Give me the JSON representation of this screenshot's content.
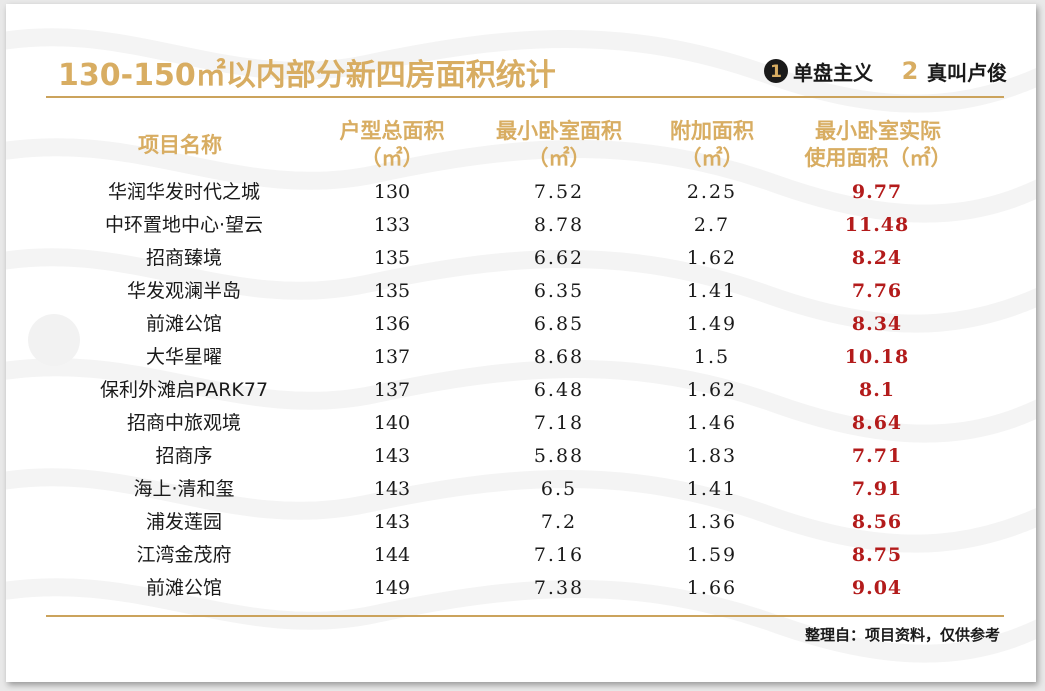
{
  "title": "130-150㎡以内部分新四房面积统计",
  "brands": [
    {
      "mark": "1",
      "text": "单盘主义"
    },
    {
      "mark": "2",
      "text": "真叫卢俊"
    }
  ],
  "table": {
    "headers": [
      {
        "line1": "项目名称",
        "line2": ""
      },
      {
        "line1": "户型总面积",
        "line2": "（㎡）"
      },
      {
        "line1": "最小卧室面积",
        "line2": "（㎡）"
      },
      {
        "line1": "附加面积",
        "line2": "（㎡）"
      },
      {
        "line1": "最小卧室实际",
        "line2": "使用面积（㎡）"
      }
    ],
    "rows": [
      {
        "name": "华润华发时代之城",
        "total": "130",
        "min": "7.52",
        "add": "2.25",
        "actual": "9.77"
      },
      {
        "name": "中环置地中心·望云",
        "total": "133",
        "min": "8.78",
        "add": "2.7",
        "actual": "11.48"
      },
      {
        "name": "招商臻境",
        "total": "135",
        "min": "6.62",
        "add": "1.62",
        "actual": "8.24"
      },
      {
        "name": "华发观澜半岛",
        "total": "135",
        "min": "6.35",
        "add": "1.41",
        "actual": "7.76"
      },
      {
        "name": "前滩公馆",
        "total": "136",
        "min": "6.85",
        "add": "1.49",
        "actual": "8.34"
      },
      {
        "name": "大华星曜",
        "total": "137",
        "min": "8.68",
        "add": "1.5",
        "actual": "10.18"
      },
      {
        "name": "保利外滩启PARK77",
        "total": "137",
        "min": "6.48",
        "add": "1.62",
        "actual": "8.1"
      },
      {
        "name": "招商中旅观境",
        "total": "140",
        "min": "7.18",
        "add": "1.46",
        "actual": "8.64"
      },
      {
        "name": "招商序",
        "total": "143",
        "min": "5.88",
        "add": "1.83",
        "actual": "7.71"
      },
      {
        "name": "海上·清和玺",
        "total": "143",
        "min": "6.5",
        "add": "1.41",
        "actual": "7.91"
      },
      {
        "name": "浦发莲园",
        "total": "143",
        "min": "7.2",
        "add": "1.36",
        "actual": "8.56"
      },
      {
        "name": "江湾金茂府",
        "total": "144",
        "min": "7.16",
        "add": "1.59",
        "actual": "8.75"
      },
      {
        "name": "前滩公馆",
        "total": "149",
        "min": "7.38",
        "add": "1.66",
        "actual": "9.04"
      }
    ]
  },
  "footnote": "整理自：项目资料，仅供参考",
  "colors": {
    "accent_gold": "#d8ad62",
    "rule_gold": "#cba35c",
    "highlight_red": "#b31b1b",
    "text": "#1a1a1a"
  }
}
